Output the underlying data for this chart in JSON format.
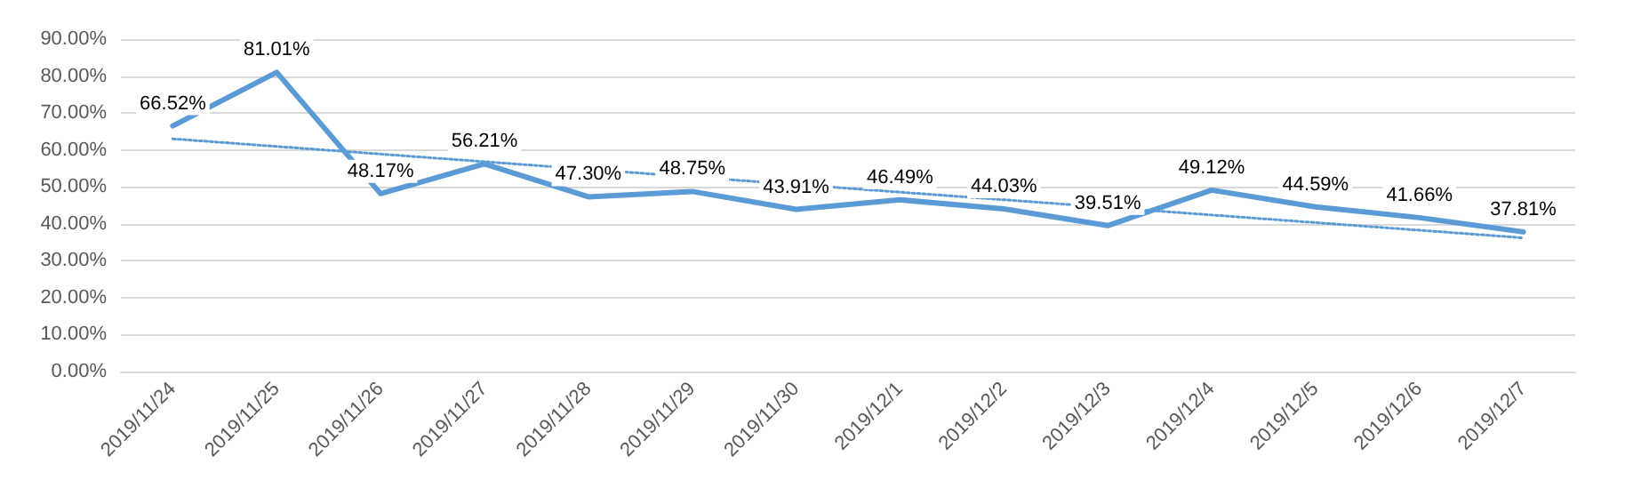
{
  "chart_data": {
    "type": "line",
    "categories": [
      "2019/11/24",
      "2019/11/25",
      "2019/11/26",
      "2019/11/27",
      "2019/11/28",
      "2019/11/29",
      "2019/11/30",
      "2019/12/1",
      "2019/12/2",
      "2019/12/3",
      "2019/12/4",
      "2019/12/5",
      "2019/12/6",
      "2019/12/7"
    ],
    "series": [
      {
        "color": "#5b9bd5",
        "values": [
          66.52,
          81.01,
          48.17,
          56.21,
          47.3,
          48.75,
          43.91,
          46.49,
          44.03,
          39.51,
          49.12,
          44.59,
          41.66,
          37.81
        ],
        "value_labels": [
          "66.52%",
          "81.01%",
          "48.17%",
          "56.21%",
          "47.30%",
          "48.75%",
          "43.91%",
          "46.49%",
          "44.03%",
          "39.51%",
          "49.12%",
          "44.59%",
          "41.66%",
          "37.81%"
        ],
        "line_style": "solid"
      },
      {
        "type": "line",
        "color": "#5b9bd5",
        "x": [
          "2019/11/24",
          "2019/12/7"
        ],
        "values": [
          63,
          36.2
        ],
        "line_style": "dotted"
      }
    ],
    "ylim": [
      0,
      90
    ],
    "yticks": [
      {
        "value": 0,
        "label": "0.00%"
      },
      {
        "value": 10,
        "label": "10.00%"
      },
      {
        "value": 20,
        "label": "20.00%"
      },
      {
        "value": 30,
        "label": "30.00%"
      },
      {
        "value": 40,
        "label": "40.00%"
      },
      {
        "value": 50,
        "label": "50.00%"
      },
      {
        "value": 60,
        "label": "60.00%"
      },
      {
        "value": 70,
        "label": "70.00%"
      },
      {
        "value": 80,
        "label": "80.00%"
      },
      {
        "value": 90,
        "label": "90.00%"
      }
    ],
    "grid": "y"
  }
}
